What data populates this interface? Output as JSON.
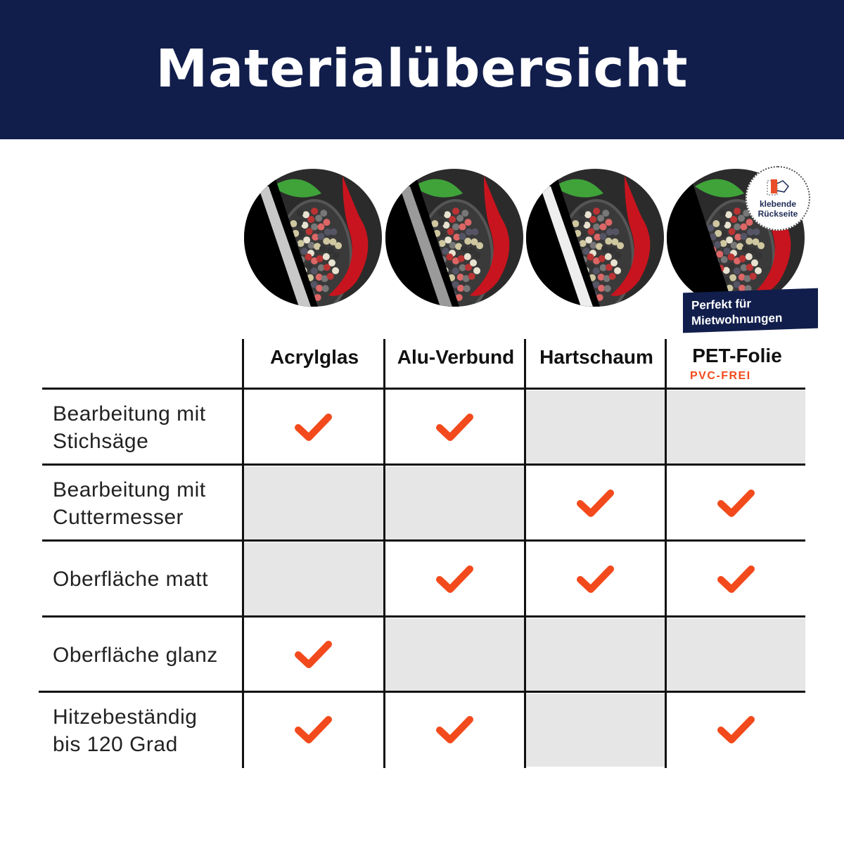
{
  "header": {
    "title": "Materialübersicht"
  },
  "badge": {
    "line1": "klebende",
    "line2": "Rückseite",
    "icon": "adhesive-peel-icon"
  },
  "banner": {
    "line1": "Perfekt für",
    "line2": "Mietwohnungen"
  },
  "colors": {
    "navy": "#111e4c",
    "check": "#f24a1c",
    "cell_gray": "#e6e6e6"
  },
  "columns": [
    {
      "label": "Acrylglas"
    },
    {
      "label": "Alu-Verbund"
    },
    {
      "label": "Hartschaum"
    },
    {
      "label": "PET-Folie",
      "sub": "PVC-FREI"
    }
  ],
  "rows": [
    {
      "label1": "Bearbeitung mit",
      "label2": "Stichsäge",
      "values": [
        true,
        true,
        false,
        false
      ]
    },
    {
      "label1": "Bearbeitung mit",
      "label2": "Cuttermesser",
      "values": [
        false,
        false,
        true,
        true
      ]
    },
    {
      "label1": "Oberfläche matt",
      "label2": "",
      "values": [
        false,
        true,
        true,
        true
      ]
    },
    {
      "label1": "Oberfläche glanz",
      "label2": "",
      "values": [
        true,
        false,
        false,
        false
      ]
    },
    {
      "label1": "Hitzebeständig",
      "label2": "bis 120 Grad",
      "values": [
        true,
        true,
        false,
        true
      ]
    }
  ]
}
